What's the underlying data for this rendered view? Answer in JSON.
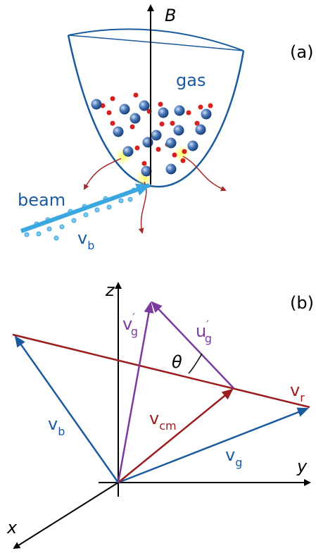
{
  "panel_a": {
    "label": "(a)",
    "field_axis": "B",
    "gas": "gas",
    "beam": "beam",
    "beam_velocity": {
      "symbol": "v",
      "sub": "b"
    }
  },
  "panel_b": {
    "label": "(b)",
    "axes": {
      "z": "z",
      "y": "y",
      "x": "x"
    },
    "angle": "θ",
    "vectors": [
      {
        "symbol": "v",
        "sub": "g",
        "sup": "′"
      },
      {
        "symbol": "u",
        "sub": "g",
        "sup": "′"
      },
      {
        "symbol": "v",
        "sub": "b"
      },
      {
        "symbol": "v",
        "sub": "cm"
      },
      {
        "symbol": "v",
        "sub": "r"
      },
      {
        "symbol": "v",
        "sub": "g"
      }
    ]
  }
}
